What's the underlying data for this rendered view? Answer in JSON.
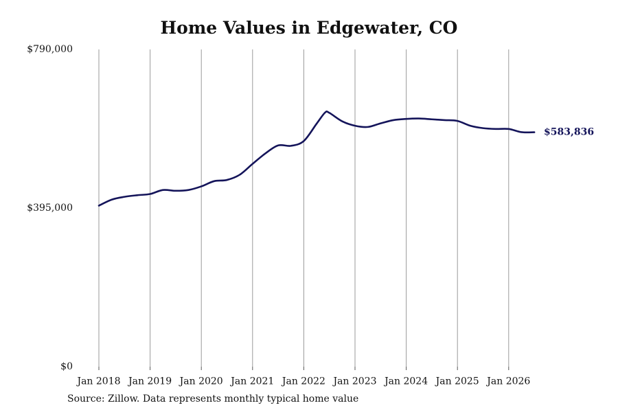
{
  "chart_data": {
    "type": "line",
    "title": "Home Values in Edgewater, CO",
    "source": "Source: Zillow. Data represents monthly typical home value",
    "x_ticks": [
      "Jan 2018",
      "Jan 2019",
      "Jan 2020",
      "Jan 2021",
      "Jan 2022",
      "Jan 2023",
      "Jan 2024",
      "Jan 2025",
      "Jan 2026"
    ],
    "y_ticks": [
      "$0",
      "$395,000",
      "$790,000"
    ],
    "ylim": [
      0,
      790000
    ],
    "grid": "vertical at x ticks",
    "end_label": "$583,836",
    "line_color": "#14145a",
    "series": [
      {
        "x": [
          "2018-01",
          "2018-04",
          "2018-07",
          "2018-10",
          "2019-01",
          "2019-04",
          "2019-07",
          "2019-10",
          "2020-01",
          "2020-04",
          "2020-07",
          "2020-10",
          "2021-01",
          "2021-04",
          "2021-07",
          "2021-10",
          "2022-01",
          "2022-04",
          "2022-06",
          "2022-07",
          "2022-10",
          "2023-01",
          "2023-04",
          "2023-07",
          "2023-10",
          "2024-01",
          "2024-04",
          "2024-07",
          "2024-10",
          "2025-01",
          "2025-04",
          "2025-07",
          "2025-10",
          "2026-01",
          "2026-04",
          "2026-07"
        ],
        "y": [
          401000,
          416000,
          423000,
          427000,
          430000,
          440000,
          438000,
          440000,
          449000,
          462000,
          465000,
          478000,
          505000,
          531000,
          551000,
          550000,
          562000,
          605000,
          633000,
          632000,
          611000,
          600000,
          597000,
          606000,
          614000,
          617000,
          618000,
          616000,
          614000,
          612000,
          600000,
          594000,
          592000,
          592000,
          584000,
          583836
        ]
      }
    ]
  }
}
